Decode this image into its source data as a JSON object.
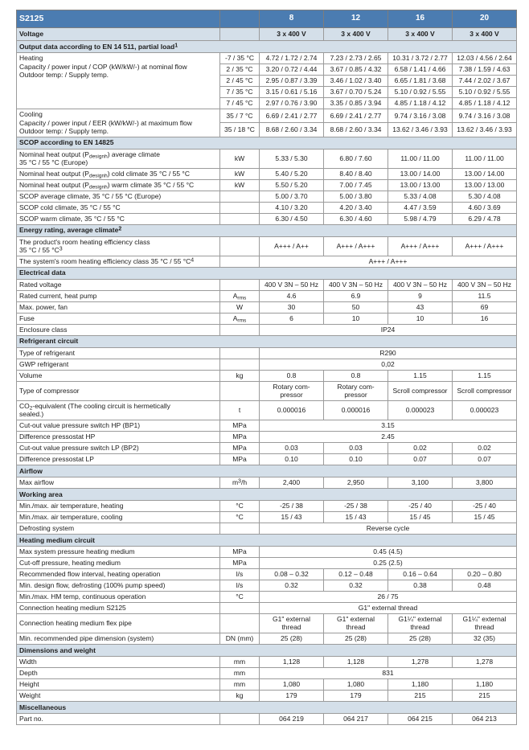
{
  "colors": {
    "header_bg": "#4b7cb1",
    "section_bg": "#d4dfe9",
    "border": "#9b9b9b",
    "text": "#1c1c1c",
    "header_text": "#ffffff"
  },
  "table": {
    "header": {
      "model": "S2125",
      "columns": [
        "8",
        "12",
        "16",
        "20"
      ]
    },
    "voltage_row": {
      "label": "Voltage",
      "values": [
        "3 x 400 V",
        "3 x 400 V",
        "3 x 400 V",
        "3 x 400 V"
      ]
    },
    "sections": [
      {
        "title": "Output data according to EN 14 511, partial load^1^",
        "rows": [
          {
            "kind": "group",
            "label": "Heating\nCapacity / power input / COP (kW/kW/-) at nominal flow\nOutdoor temp: / Supply temp.",
            "subrows": [
              {
                "cond": "-7 / 35 °C",
                "values": [
                  "4.72 / 1.72 / 2.74",
                  "7.23 / 2.73 / 2.65",
                  "10.31 / 3.72 / 2.77",
                  "12.03 / 4.56 / 2.64"
                ]
              },
              {
                "cond": "2 / 35 °C",
                "values": [
                  "3.20 / 0.72 / 4.44",
                  "3.67 / 0.85 / 4.32",
                  "6.58 / 1.41 / 4.66",
                  "7.38 / 1.59 / 4.63"
                ]
              },
              {
                "cond": "2 / 45 °C",
                "values": [
                  "2.95 / 0.87 / 3.39",
                  "3.46 / 1.02 / 3.40",
                  "6.65 / 1.81 / 3.68",
                  "7.44 / 2.02 / 3.67"
                ]
              },
              {
                "cond": "7 / 35 °C",
                "values": [
                  "3.15 / 0.61 / 5.16",
                  "3.67 / 0.70 / 5.24",
                  "5.10 / 0.92 / 5.55",
                  "5.10 / 0.92 / 5.55"
                ]
              },
              {
                "cond": "7 / 45 °C",
                "values": [
                  "2.97 / 0.76 / 3.90",
                  "3.35 / 0.85 / 3.94",
                  "4.85 / 1.18 / 4.12",
                  "4.85 / 1.18 / 4.12"
                ]
              }
            ]
          },
          {
            "kind": "group",
            "label": "Cooling\nCapacity / power input / EER (kW/kW/-) at maximum flow\nOutdoor temp: / Supply temp.",
            "subrows": [
              {
                "cond": "35 / 7 °C",
                "values": [
                  "6.69 / 2.41 / 2.77",
                  "6.69 / 2.41 / 2.77",
                  "9.74 / 3.16 / 3.08",
                  "9.74 / 3.16 / 3.08"
                ]
              },
              {
                "cond": "35 / 18 °C",
                "values": [
                  "8.68 / 2.60 / 3.34",
                  "8.68 / 2.60 / 3.34",
                  "13.62 / 3.46 / 3.93",
                  "13.62 / 3.46 / 3.93"
                ]
              }
            ]
          }
        ]
      },
      {
        "title": "SCOP according to EN 14825",
        "rows": [
          {
            "label": "Nominal heat output (P~designh~) average climate\n35 °C / 55 °C (Europe)",
            "unit": "kW",
            "values": [
              "5.33 / 5.30",
              "6.80 / 7.60",
              "11.00 / 11.00",
              "11.00 / 11.00"
            ]
          },
          {
            "label": "Nominal heat output (P~designh~) cold climate 35 °C / 55 °C",
            "unit": "kW",
            "values": [
              "5.40 / 5.20",
              "8.40 / 8.40",
              "13.00 / 14.00",
              "13.00 / 14.00"
            ]
          },
          {
            "label": "Nominal heat output (P~designh~) warm climate 35 °C / 55 °C",
            "unit": "kW",
            "values": [
              "5.50 / 5.20",
              "7.00 / 7.45",
              "13.00 / 13.00",
              "13.00 / 13.00"
            ]
          },
          {
            "label": "SCOP average climate, 35 °C / 55 °C (Europe)",
            "unit": "",
            "values": [
              "5.00 / 3.70",
              "5.00 / 3.80",
              "5.33 / 4.08",
              "5.30 / 4.08"
            ]
          },
          {
            "label": "SCOP cold climate, 35 °C / 55 °C",
            "unit": "",
            "values": [
              "4.10 / 3.20",
              "4.20 / 3.40",
              "4.47 / 3.59",
              "4.60 / 3.69"
            ]
          },
          {
            "label": "SCOP warm climate, 35 °C / 55 °C",
            "unit": "",
            "values": [
              "6.30 / 4.50",
              "6.30 / 4.60",
              "5.98 / 4.79",
              "6.29 / 4.78"
            ]
          }
        ]
      },
      {
        "title": "Energy rating, average climate^2^",
        "rows": [
          {
            "label": "The product's room heating efficiency class\n35 °C / 55 °C^3^",
            "unit": "",
            "values": [
              "A+++ / A++",
              "A+++ / A+++",
              "A+++ / A+++",
              "A+++ / A+++"
            ]
          },
          {
            "label": "The system's room heating efficiency class 35 °C / 55 °C^4^",
            "unit": "",
            "span": "A+++ / A+++"
          }
        ]
      },
      {
        "title": "Electrical data",
        "rows": [
          {
            "label": "Rated voltage",
            "unit": "",
            "values": [
              "400 V 3N – 50 Hz",
              "400 V 3N – 50 Hz",
              "400 V 3N – 50 Hz",
              "400 V 3N – 50 Hz"
            ]
          },
          {
            "label": "Rated current, heat pump",
            "unit": "A~rms~",
            "values": [
              "4.6",
              "6.9",
              "9",
              "11.5"
            ]
          },
          {
            "label": "Max. power, fan",
            "unit": "W",
            "values": [
              "30",
              "50",
              "43",
              "69"
            ]
          },
          {
            "label": "Fuse",
            "unit": "A~rms~",
            "values": [
              "6",
              "10",
              "10",
              "16"
            ]
          },
          {
            "label": "Enclosure class",
            "unit": "",
            "span": "IP24"
          }
        ]
      },
      {
        "title": "Refrigerant circuit",
        "rows": [
          {
            "label": "Type of refrigerant",
            "unit": "",
            "span": "R290"
          },
          {
            "label": "GWP refrigerant",
            "unit": "",
            "span": "0,02"
          },
          {
            "label": "Volume",
            "unit": "kg",
            "values": [
              "0.8",
              "0.8",
              "1.15",
              "1.15"
            ]
          },
          {
            "label": "Type of compressor",
            "unit": "",
            "values": [
              "Rotary com-\npressor",
              "Rotary com-\npressor",
              "Scroll compressor",
              "Scroll compressor"
            ]
          },
          {
            "label": "CO~2~-equivalent (The cooling circuit is hermetically\nsealed.)",
            "unit": "t",
            "values": [
              "0.000016",
              "0.000016",
              "0.000023",
              "0.000023"
            ]
          },
          {
            "label": "Cut-out value pressure switch HP (BP1)",
            "unit": "MPa",
            "span": "3.15"
          },
          {
            "label": "Difference pressostat HP",
            "unit": "MPa",
            "span": "2.45"
          },
          {
            "label": "Cut-out value pressure switch LP (BP2)",
            "unit": "MPa",
            "values": [
              "0.03",
              "0.03",
              "0.02",
              "0.02"
            ]
          },
          {
            "label": "Difference pressostat LP",
            "unit": "MPa",
            "values": [
              "0.10",
              "0.10",
              "0.07",
              "0.07"
            ]
          }
        ]
      },
      {
        "title": "Airflow",
        "rows": [
          {
            "label": "Max airflow",
            "unit": "m^3^/h",
            "values": [
              "2,400",
              "2,950",
              "3,100",
              "3,800"
            ]
          }
        ]
      },
      {
        "title": "Working area",
        "rows": [
          {
            "label": "Min./max. air temperature, heating",
            "unit": "°C",
            "values": [
              "-25 / 38",
              "-25 / 38",
              "-25 / 40",
              "-25 / 40"
            ]
          },
          {
            "label": "Min./max. air temperature, cooling",
            "unit": "°C",
            "values": [
              "15 / 43",
              "15 / 43",
              "15 / 45",
              "15 / 45"
            ]
          },
          {
            "label": "Defrosting system",
            "unit": "",
            "span": "Reverse cycle"
          }
        ]
      },
      {
        "title": "Heating medium circuit",
        "rows": [
          {
            "label": "Max system pressure heating medium",
            "unit": "MPa",
            "span": "0.45 (4.5)"
          },
          {
            "label": "Cut-off pressure, heating medium",
            "unit": "MPa",
            "span": "0.25 (2.5)"
          },
          {
            "label": "Recommended flow interval, heating operation",
            "unit": "l/s",
            "values": [
              "0.08 – 0.32",
              "0.12 – 0.48",
              "0.16 – 0.64",
              "0.20 – 0.80"
            ]
          },
          {
            "label": "Min. design flow, defrosting (100% pump speed)",
            "unit": "l/s",
            "values": [
              "0.32",
              "0.32",
              "0.38",
              "0.48"
            ]
          },
          {
            "label": "Min./max. HM temp, continuous operation",
            "unit": "°C",
            "span": "26 / 75"
          },
          {
            "label": "Connection heating medium S2125",
            "unit": "",
            "span": "G1\" external thread"
          },
          {
            "label": "Connection heating medium flex pipe",
            "unit": "",
            "values": [
              "G1\" external\nthread",
              "G1\" external\nthread",
              "G1¼\" external\nthread",
              "G1¼\" external\nthread"
            ]
          },
          {
            "label": "Min. recommended pipe dimension (system)",
            "unit": "DN (mm)",
            "values": [
              "25 (28)",
              "25 (28)",
              "25 (28)",
              "32 (35)"
            ]
          }
        ]
      },
      {
        "title": "Dimensions and weight",
        "rows": [
          {
            "label": "Width",
            "unit": "mm",
            "values": [
              "1,128",
              "1,128",
              "1,278",
              "1,278"
            ]
          },
          {
            "label": "Depth",
            "unit": "mm",
            "span": "831"
          },
          {
            "label": "Height",
            "unit": "mm",
            "values": [
              "1,080",
              "1,080",
              "1,180",
              "1,180"
            ]
          },
          {
            "label": "Weight",
            "unit": "kg",
            "values": [
              "179",
              "179",
              "215",
              "215"
            ]
          }
        ]
      },
      {
        "title": "Miscellaneous",
        "rows": [
          {
            "label": "Part no.",
            "unit": "",
            "values": [
              "064 219",
              "064 217",
              "064 215",
              "064 213"
            ]
          }
        ]
      }
    ]
  }
}
